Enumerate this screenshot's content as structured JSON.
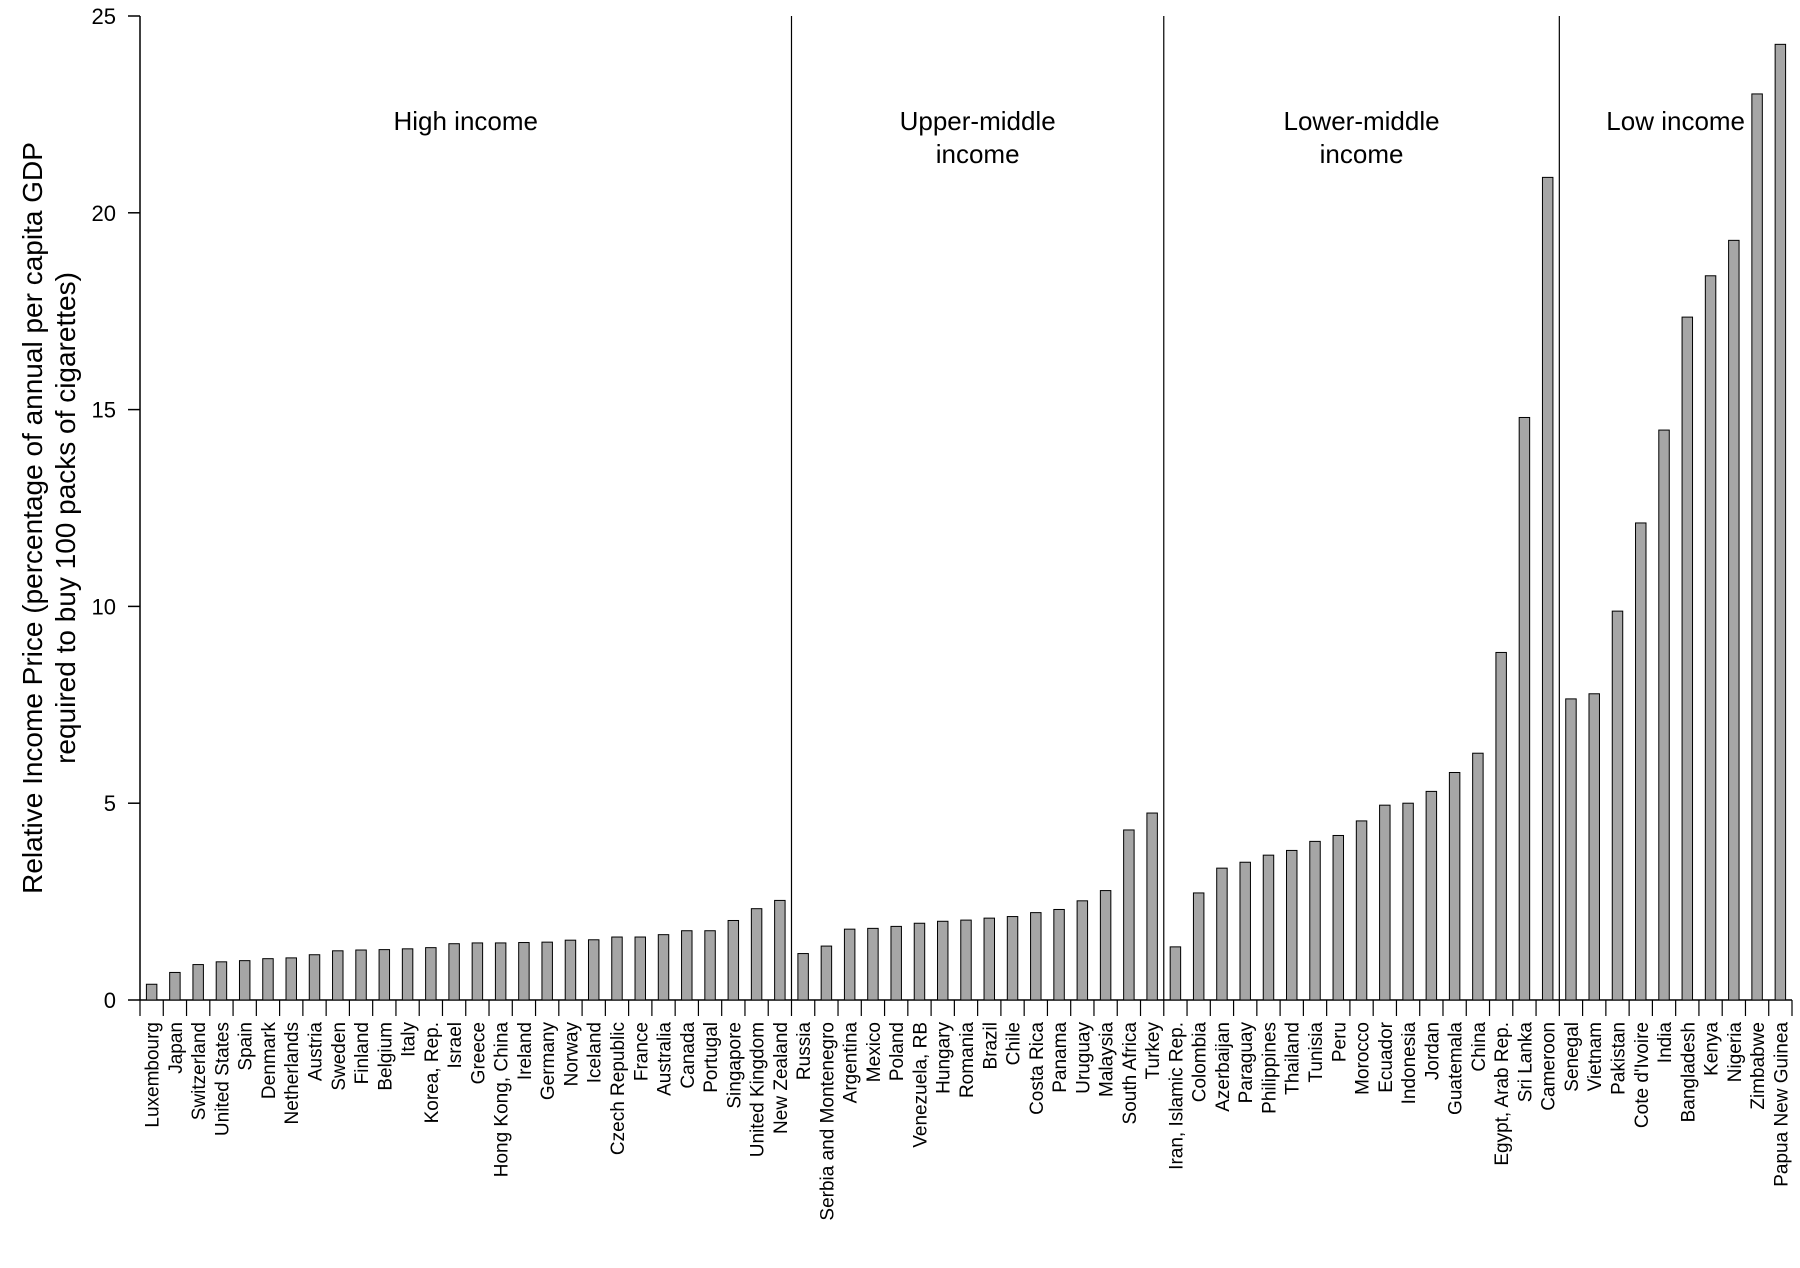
{
  "chart_data": {
    "type": "bar",
    "title": "",
    "xlabel": "",
    "ylabel": "Relative Income Price (percentage of annual per capita GDP required to buy 100 packs of cigarettes)",
    "ylabel_lines": [
      "Relative Income Price (percentage of annual per capita GDP",
      "required to buy 100 packs of cigarettes)"
    ],
    "ylim": [
      0,
      25
    ],
    "yticks": [
      0,
      5,
      10,
      15,
      20,
      25
    ],
    "grid": false,
    "bar_color": "#a6a6a6",
    "bar_stroke": "#000000",
    "categories": [
      "Luxembourg",
      "Japan",
      "Switzerland",
      "United States",
      "Spain",
      "Denmark",
      "Netherlands",
      "Austria",
      "Sweden",
      "Finland",
      "Belgium",
      "Italy",
      "Korea, Rep.",
      "Israel",
      "Greece",
      "Hong Kong, China",
      "Ireland",
      "Germany",
      "Norway",
      "Iceland",
      "Czech Republic",
      "France",
      "Australia",
      "Canada",
      "Portugal",
      "Singapore",
      "United Kingdom",
      "New Zealand",
      "Russia",
      "Serbia and Montenegro",
      "Argentina",
      "Mexico",
      "Poland",
      "Venezuela, RB",
      "Hungary",
      "Romania",
      "Brazil",
      "Chile",
      "Costa Rica",
      "Panama",
      "Uruguay",
      "Malaysia",
      "South Africa",
      "Turkey",
      "Iran, Islamic Rep.",
      "Colombia",
      "Azerbaijan",
      "Paraguay",
      "Philippines",
      "Thailand",
      "Tunisia",
      "Peru",
      "Morocco",
      "Ecuador",
      "Indonesia",
      "Jordan",
      "Guatemala",
      "China",
      "Egypt, Arab Rep.",
      "Sri Lanka",
      "Cameroon",
      "Senegal",
      "Vietnam",
      "Pakistan",
      "Cote d'Ivoire",
      "India",
      "Bangladesh",
      "Kenya",
      "Nigeria",
      "Zimbabwe",
      "Papua New Guinea"
    ],
    "values": [
      0.4,
      0.7,
      0.9,
      0.97,
      1.0,
      1.05,
      1.07,
      1.15,
      1.25,
      1.27,
      1.28,
      1.3,
      1.33,
      1.43,
      1.45,
      1.45,
      1.46,
      1.47,
      1.52,
      1.53,
      1.6,
      1.6,
      1.66,
      1.76,
      1.76,
      2.02,
      2.32,
      2.53,
      1.18,
      1.37,
      1.8,
      1.82,
      1.87,
      1.95,
      2.0,
      2.03,
      2.08,
      2.12,
      2.22,
      2.3,
      2.52,
      2.78,
      4.32,
      4.75,
      1.35,
      2.72,
      3.35,
      3.5,
      3.68,
      3.8,
      4.03,
      4.18,
      4.55,
      4.95,
      5.0,
      5.3,
      5.78,
      6.27,
      8.83,
      14.8,
      20.9,
      7.65,
      7.78,
      9.88,
      12.12,
      14.48,
      17.35,
      18.4,
      19.3,
      23.02,
      24.28
    ],
    "groups": [
      {
        "label": "High income",
        "label_lines": [
          "High income"
        ],
        "count": 28
      },
      {
        "label": "Upper-middle income",
        "label_lines": [
          "Upper-middle",
          "income"
        ],
        "count": 16
      },
      {
        "label": "Lower-middle income",
        "label_lines": [
          "Lower-middle",
          "income"
        ],
        "count": 17
      },
      {
        "label": "Low income",
        "label_lines": [
          "Low income"
        ],
        "count": 10
      }
    ]
  }
}
